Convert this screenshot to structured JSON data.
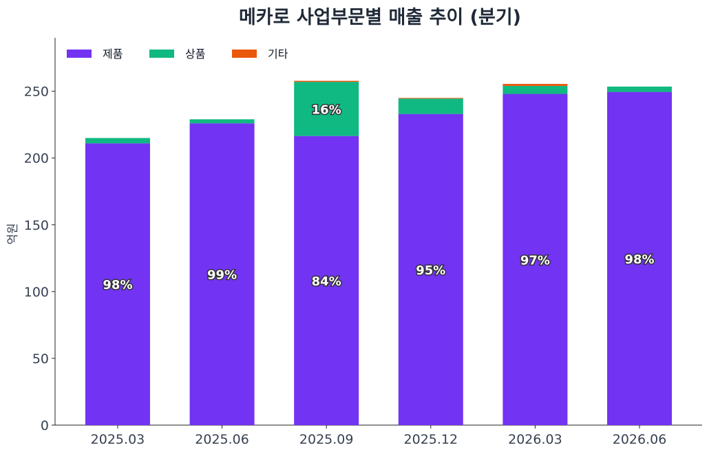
{
  "chart_data": {
    "type": "bar",
    "stacked": true,
    "title": "메카로 사업부문별 매출 추이 (분기)",
    "ylabel": "억원",
    "xlabel": "",
    "ylim": [
      0,
      290
    ],
    "yticks": [
      0,
      50,
      100,
      150,
      200,
      250
    ],
    "categories": [
      "2025.03",
      "2025.06",
      "2025.09",
      "2025.12",
      "2026.03",
      "2026.06"
    ],
    "series": [
      {
        "name": "제품",
        "color": "#7233f2",
        "values": [
          211,
          226,
          216.5,
          233,
          248,
          249.5
        ]
      },
      {
        "name": "상품",
        "color": "#10b981",
        "values": [
          4,
          3,
          40.5,
          11.5,
          6,
          4
        ]
      },
      {
        "name": "기타",
        "color": "#ea580c",
        "values": [
          0,
          0,
          0.8,
          0.5,
          1.5,
          0
        ]
      }
    ],
    "labels": [
      {
        "category": "2025.03",
        "series": "제품",
        "text": "98%"
      },
      {
        "category": "2025.06",
        "series": "제품",
        "text": "99%"
      },
      {
        "category": "2025.09",
        "series": "제품",
        "text": "84%"
      },
      {
        "category": "2025.09",
        "series": "상품",
        "text": "16%"
      },
      {
        "category": "2025.12",
        "series": "제품",
        "text": "95%"
      },
      {
        "category": "2026.03",
        "series": "제품",
        "text": "97%"
      },
      {
        "category": "2026.06",
        "series": "제품",
        "text": "98%"
      }
    ],
    "legend": "top-left",
    "grid": false
  }
}
